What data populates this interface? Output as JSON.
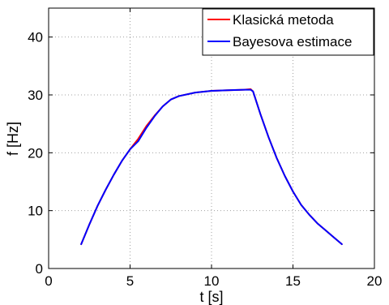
{
  "chart_data": {
    "type": "line",
    "xlabel": "t [s]",
    "ylabel": "f [Hz]",
    "xlim": [
      0,
      20
    ],
    "ylim": [
      0,
      45
    ],
    "x_ticks": [
      0,
      5,
      10,
      15,
      20
    ],
    "y_ticks": [
      0,
      10,
      20,
      30,
      40
    ],
    "x_tick_labels": [
      "0",
      "5",
      "10",
      "15",
      "20"
    ],
    "y_tick_labels": [
      "0",
      "10",
      "20",
      "30",
      "40"
    ],
    "grid": true,
    "legend_position": "top-right",
    "series": [
      {
        "name": "Klasická metoda",
        "color": "#ff0000",
        "points": [
          [
            2.0,
            4.2
          ],
          [
            2.5,
            7.6
          ],
          [
            3.0,
            10.8
          ],
          [
            3.5,
            13.6
          ],
          [
            4.0,
            16.2
          ],
          [
            4.5,
            18.6
          ],
          [
            5.0,
            20.6
          ],
          [
            5.5,
            22.4
          ],
          [
            6.0,
            24.6
          ],
          [
            6.5,
            26.4
          ],
          [
            7.0,
            28.0
          ],
          [
            7.5,
            29.2
          ],
          [
            8.0,
            29.8
          ],
          [
            9.0,
            30.4
          ],
          [
            10.0,
            30.7
          ],
          [
            11.0,
            30.8
          ],
          [
            12.0,
            30.9
          ],
          [
            12.4,
            31.0
          ],
          [
            12.55,
            30.6
          ],
          [
            13.0,
            26.7
          ],
          [
            13.5,
            22.7
          ],
          [
            14.0,
            19.1
          ],
          [
            14.5,
            16.0
          ],
          [
            15.0,
            13.3
          ],
          [
            15.5,
            11.0
          ],
          [
            16.0,
            9.3
          ],
          [
            16.5,
            7.8
          ],
          [
            17.0,
            6.6
          ],
          [
            17.5,
            5.4
          ],
          [
            18.0,
            4.2
          ]
        ]
      },
      {
        "name": "Bayesova estimace",
        "color": "#0000ff",
        "points": [
          [
            2.0,
            4.2
          ],
          [
            2.5,
            7.6
          ],
          [
            3.0,
            10.8
          ],
          [
            3.5,
            13.6
          ],
          [
            4.0,
            16.2
          ],
          [
            4.5,
            18.6
          ],
          [
            5.0,
            20.6
          ],
          [
            5.5,
            22.0
          ],
          [
            6.0,
            24.3
          ],
          [
            6.5,
            26.3
          ],
          [
            7.0,
            28.0
          ],
          [
            7.5,
            29.2
          ],
          [
            8.0,
            29.8
          ],
          [
            9.0,
            30.4
          ],
          [
            10.0,
            30.7
          ],
          [
            11.0,
            30.8
          ],
          [
            12.0,
            30.9
          ],
          [
            12.4,
            30.9
          ],
          [
            12.55,
            30.6
          ],
          [
            13.0,
            26.7
          ],
          [
            13.5,
            22.7
          ],
          [
            14.0,
            19.1
          ],
          [
            14.5,
            16.0
          ],
          [
            15.0,
            13.3
          ],
          [
            15.5,
            11.0
          ],
          [
            16.0,
            9.3
          ],
          [
            16.5,
            7.8
          ],
          [
            17.0,
            6.6
          ],
          [
            17.5,
            5.4
          ],
          [
            18.0,
            4.2
          ]
        ]
      }
    ]
  }
}
